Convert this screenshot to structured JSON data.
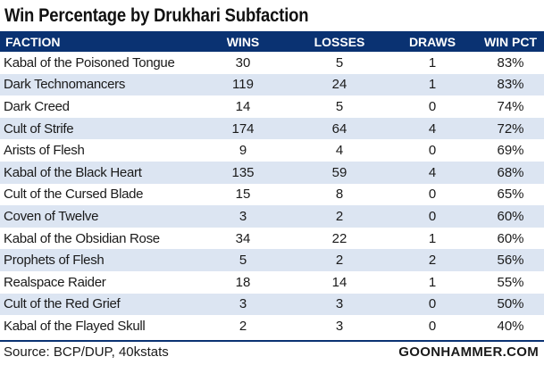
{
  "chart_data": {
    "type": "table",
    "title": "Win Percentage by Drukhari Subfaction",
    "columns": [
      "FACTION",
      "WINS",
      "LOSSES",
      "DRAWS",
      "WIN PCT"
    ],
    "rows": [
      [
        "Kabal of the Poisoned Tongue",
        "30",
        "5",
        "1",
        "83%"
      ],
      [
        "Dark Technomancers",
        "119",
        "24",
        "1",
        "83%"
      ],
      [
        "Dark Creed",
        "14",
        "5",
        "0",
        "74%"
      ],
      [
        "Cult of Strife",
        "174",
        "64",
        "4",
        "72%"
      ],
      [
        "Arists of Flesh",
        "9",
        "4",
        "0",
        "69%"
      ],
      [
        "Kabal of the Black Heart",
        "135",
        "59",
        "4",
        "68%"
      ],
      [
        "Cult of the Cursed Blade",
        "15",
        "8",
        "0",
        "65%"
      ],
      [
        "Coven of Twelve",
        "3",
        "2",
        "0",
        "60%"
      ],
      [
        "Kabal of the Obsidian Rose",
        "34",
        "22",
        "1",
        "60%"
      ],
      [
        "Prophets of Flesh",
        "5",
        "2",
        "2",
        "56%"
      ],
      [
        "Realspace Raider",
        "18",
        "14",
        "1",
        "55%"
      ],
      [
        "Cult of the Red Grief",
        "3",
        "3",
        "0",
        "50%"
      ],
      [
        "Kabal of the Flayed Skull",
        "2",
        "3",
        "0",
        "40%"
      ]
    ],
    "source": "Source: BCP/DUP, 40kstats",
    "brand": "GOONHAMMER.COM",
    "colors": {
      "header_bg": "#0a3272",
      "header_text": "#ffffff",
      "alt_row_bg": "#dce5f2"
    }
  }
}
